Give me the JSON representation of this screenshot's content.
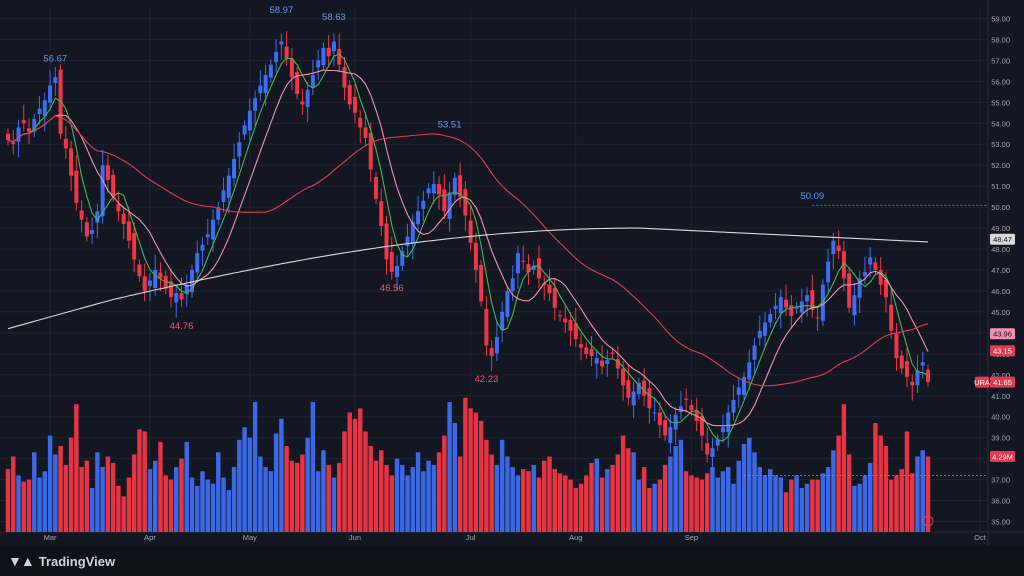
{
  "app": {
    "brand": "TradingView",
    "brand_icon": "tradingview-logo-icon"
  },
  "colors": {
    "background": "#131722",
    "grid": "#1f2330",
    "up": "#3d6df2",
    "down": "#f23645",
    "peak_up": "#5b9cf6",
    "peak_down": "#f7525f",
    "ma_fast": "#3fb950",
    "ma_mid": "#f48fb1",
    "ma_slow": "#e53950",
    "ma_long": "#d8d8d8",
    "axis_text": "#a3a6af"
  },
  "chart_data": {
    "type": "candlestick",
    "symbol": "URA",
    "x_axis": {
      "ticks": [
        "Mar",
        "Apr",
        "May",
        "Jun",
        "Jul",
        "Aug",
        "Sep",
        "Oct"
      ]
    },
    "y_axis": {
      "min": 34.5,
      "max": 59.5,
      "step": 1,
      "side": "right"
    },
    "price_tags": [
      {
        "label": "48.47",
        "value": 48.47,
        "style": "long"
      },
      {
        "label": "43.96",
        "value": 43.96,
        "style": "mid"
      },
      {
        "label": "43.15",
        "value": 43.15,
        "style": "slow"
      },
      {
        "label": "URA",
        "value": 41.65,
        "style": "symbol"
      },
      {
        "label": "41.65",
        "value": 41.65,
        "style": "last"
      },
      {
        "label": "4.29M",
        "value": 38.1,
        "style": "volume"
      }
    ],
    "annotations": [
      {
        "label": "56.67",
        "idx": 9,
        "value": 56.67,
        "kind": "high"
      },
      {
        "label": "44.76",
        "idx": 33,
        "value": 44.76,
        "kind": "low"
      },
      {
        "label": "58.97",
        "idx": 52,
        "value": 58.97,
        "kind": "high"
      },
      {
        "label": "58.63",
        "idx": 62,
        "value": 58.63,
        "kind": "high"
      },
      {
        "label": "46.56",
        "idx": 73,
        "value": 46.56,
        "kind": "low"
      },
      {
        "label": "53.51",
        "idx": 84,
        "value": 53.51,
        "kind": "high"
      },
      {
        "label": "42.23",
        "idx": 91,
        "value": 42.23,
        "kind": "low"
      },
      {
        "label": "50.09",
        "idx": 153,
        "value": 50.09,
        "kind": "high"
      }
    ],
    "reference_line": {
      "value": 50.09,
      "style": "dotted"
    },
    "volume_reference": {
      "value": 37.2,
      "style": "dotted"
    },
    "close": [
      53.2,
      53.0,
      53.8,
      54.0,
      53.6,
      54.2,
      54.7,
      55.1,
      55.8,
      56.2,
      53.5,
      52.8,
      51.5,
      50.2,
      49.4,
      48.6,
      48.9,
      49.8,
      52.0,
      51.3,
      50.5,
      49.8,
      49.2,
      48.4,
      47.5,
      46.7,
      46.0,
      46.5,
      47.0,
      46.6,
      46.1,
      45.7,
      45.9,
      45.6,
      46.3,
      47.0,
      47.8,
      48.2,
      48.7,
      49.4,
      50.0,
      50.8,
      51.5,
      52.3,
      53.1,
      53.9,
      54.6,
      55.2,
      55.8,
      56.3,
      56.8,
      57.4,
      57.9,
      57.1,
      56.2,
      55.4,
      54.9,
      55.6,
      56.3,
      57.0,
      57.6,
      57.2,
      57.9,
      56.8,
      55.7,
      54.9,
      54.5,
      53.8,
      53.3,
      51.8,
      50.4,
      49.1,
      47.5,
      46.9,
      47.2,
      47.9,
      48.6,
      49.3,
      49.8,
      50.3,
      50.9,
      51.1,
      50.6,
      49.8,
      50.7,
      51.4,
      50.5,
      49.6,
      48.3,
      47.0,
      45.5,
      43.4,
      42.9,
      43.8,
      45.0,
      46.0,
      46.6,
      47.8,
      47.4,
      46.9,
      47.2,
      46.6,
      46.3,
      45.9,
      45.2,
      44.8,
      44.5,
      44.1,
      43.7,
      43.3,
      43.0,
      42.9,
      42.8,
      42.4,
      42.7,
      43.0,
      42.3,
      41.5,
      40.9,
      41.2,
      41.6,
      41.0,
      40.4,
      40.2,
      39.6,
      39.1,
      39.5,
      40.1,
      40.5,
      40.8,
      40.3,
      39.8,
      39.1,
      38.2,
      38.5,
      38.9,
      39.5,
      40.2,
      40.8,
      41.4,
      41.9,
      42.6,
      43.4,
      44.1,
      44.5,
      44.9,
      45.3,
      45.7,
      45.2,
      44.8,
      45.2,
      45.5,
      45.8,
      45.1,
      44.7,
      46.3,
      47.4,
      48.4,
      47.9,
      46.6,
      45.2,
      45.8,
      46.6,
      46.9,
      47.6,
      47.0,
      46.3,
      45.7,
      44.1,
      42.8,
      42.3,
      41.9,
      41.5,
      42.2,
      42.6,
      41.65
    ],
    "volume": [
      37.5,
      38.1,
      37.2,
      36.9,
      37.0,
      38.3,
      37.1,
      37.4,
      39.1,
      38.2,
      38.6,
      37.7,
      39.0,
      40.6,
      37.6,
      37.9,
      36.6,
      38.3,
      37.6,
      38.1,
      37.8,
      36.7,
      36.2,
      37.1,
      38.2,
      39.4,
      39.3,
      37.5,
      37.9,
      38.8,
      37.2,
      37.0,
      37.6,
      38.0,
      38.8,
      37.1,
      36.7,
      37.4,
      37.0,
      36.8,
      38.3,
      37.1,
      36.5,
      37.6,
      38.9,
      39.5,
      39.0,
      40.7,
      38.1,
      37.6,
      37.4,
      39.2,
      39.9,
      38.6,
      37.9,
      37.8,
      38.2,
      39.0,
      40.7,
      37.4,
      38.4,
      37.7,
      37.1,
      37.8,
      39.3,
      40.2,
      39.9,
      40.4,
      39.3,
      38.6,
      37.9,
      38.4,
      37.7,
      37.2,
      38.0,
      37.7,
      37.2,
      37.6,
      38.3,
      37.4,
      37.9,
      37.7,
      38.3,
      39.1,
      40.7,
      39.7,
      38.1,
      40.9,
      40.4,
      40.2,
      39.8,
      38.9,
      38.2,
      37.7,
      38.9,
      38.1,
      37.6,
      37.2,
      37.5,
      37.4,
      37.7,
      37.1,
      37.9,
      38.1,
      37.5,
      37.3,
      37.2,
      37.0,
      36.6,
      36.8,
      37.2,
      37.8,
      38.0,
      37.1,
      37.5,
      37.7,
      38.2,
      39.1,
      38.5,
      38.3,
      37.0,
      37.6,
      36.6,
      36.8,
      37.0,
      37.7,
      38.1,
      38.6,
      38.9,
      37.4,
      37.2,
      37.1,
      37.0,
      37.3,
      37.6,
      37.1,
      37.4,
      37.6,
      36.8,
      37.9,
      38.7,
      39.0,
      38.3,
      37.6,
      37.2,
      37.5,
      37.2,
      37.1,
      36.4,
      37.0,
      37.2,
      36.6,
      36.8,
      37.0,
      37.0,
      37.3,
      37.6,
      38.4,
      39.1,
      40.6,
      38.2,
      36.7,
      36.8,
      37.2,
      37.8,
      39.7,
      39.1,
      38.6,
      37.0,
      37.2,
      37.5,
      39.3,
      37.3,
      38.1,
      38.4,
      38.1
    ]
  }
}
